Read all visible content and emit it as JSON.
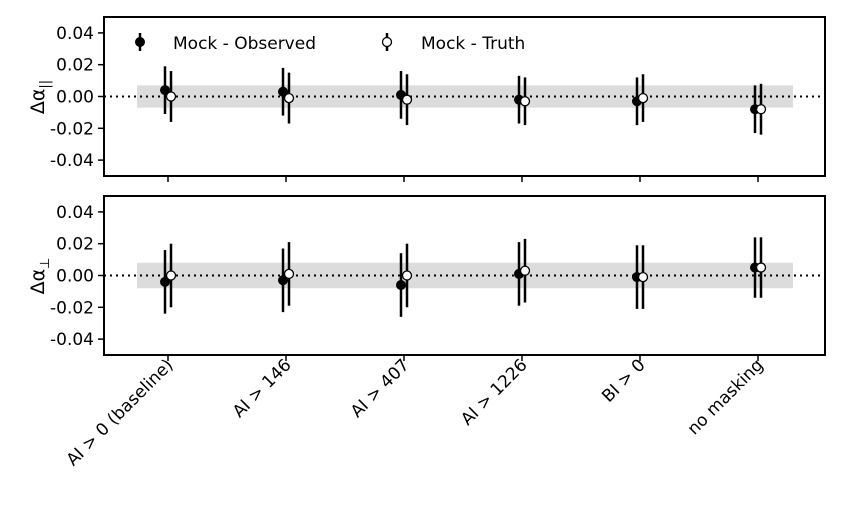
{
  "chart_data": {
    "type": "scatter",
    "style": "errorbar",
    "categories": [
      "AI > 0 (baseline)",
      "AI > 146",
      "AI > 407",
      "AI > 1226",
      "BI > 0",
      "no masking"
    ],
    "legend": {
      "placement": "top-left",
      "entries": [
        {
          "label": "Mock - Observed",
          "marker": "filled-circle"
        },
        {
          "label": "Mock - Truth",
          "marker": "open-circle"
        }
      ]
    },
    "reference_line": {
      "y": 0.0,
      "style": "dotted"
    },
    "colors": {
      "observed": "#000000",
      "truth_fill": "#ffffff",
      "band": "#dcdcdc"
    },
    "panels": [
      {
        "ylabel_symbol": "Δα",
        "ylabel_subscript": "||",
        "ylim": [
          -0.05,
          0.05
        ],
        "yticks": [
          "-0.04",
          "-0.02",
          "0.00",
          "0.02",
          "0.04"
        ],
        "band": [
          -0.007,
          0.007
        ],
        "series": [
          {
            "name": "Mock - Observed",
            "values": [
              0.004,
              0.003,
              0.001,
              -0.002,
              -0.003,
              -0.008
            ],
            "errors": [
              0.015,
              0.015,
              0.015,
              0.015,
              0.015,
              0.015
            ]
          },
          {
            "name": "Mock - Truth",
            "values": [
              0.0,
              -0.001,
              -0.002,
              -0.003,
              -0.001,
              -0.008
            ],
            "errors": [
              0.016,
              0.016,
              0.016,
              0.015,
              0.015,
              0.016
            ]
          }
        ]
      },
      {
        "ylabel_symbol": "Δα",
        "ylabel_subscript": "⊥",
        "ylim": [
          -0.05,
          0.05
        ],
        "yticks": [
          "-0.04",
          "-0.02",
          "0.00",
          "0.02",
          "0.04"
        ],
        "band": [
          -0.008,
          0.008
        ],
        "series": [
          {
            "name": "Mock - Observed",
            "values": [
              -0.004,
              -0.003,
              -0.006,
              0.001,
              -0.001,
              0.005
            ],
            "errors": [
              0.02,
              0.02,
              0.02,
              0.02,
              0.02,
              0.019
            ]
          },
          {
            "name": "Mock - Truth",
            "values": [
              0.0,
              0.001,
              0.0,
              0.003,
              -0.001,
              0.005
            ],
            "errors": [
              0.02,
              0.02,
              0.02,
              0.02,
              0.02,
              0.019
            ]
          }
        ]
      }
    ]
  }
}
